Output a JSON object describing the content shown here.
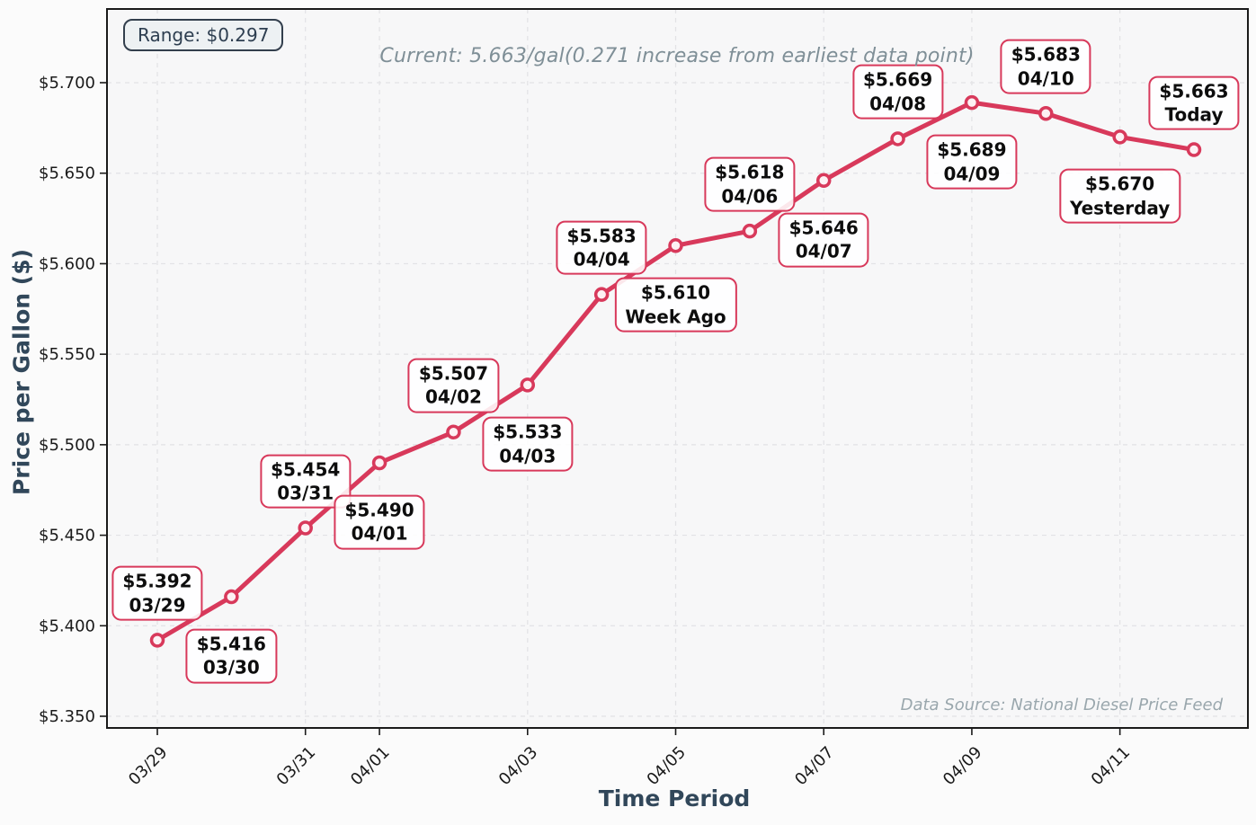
{
  "chart_data": {
    "type": "line",
    "title": "Current: 5.663/gal(0.271 increase from earliest data point)",
    "xlabel": "Time Period",
    "ylabel": "Price per Gallon ($)",
    "range_badge": "Range: $0.297",
    "data_source": "Data Source: National Diesel Price Feed",
    "x": [
      "03/29",
      "03/30",
      "03/31",
      "04/01",
      "04/02",
      "04/03",
      "04/04",
      "Week Ago",
      "04/06",
      "04/07",
      "04/08",
      "04/09",
      "04/10",
      "Yesterday",
      "Today"
    ],
    "values": [
      5.392,
      5.416,
      5.454,
      5.49,
      5.507,
      5.533,
      5.583,
      5.61,
      5.618,
      5.646,
      5.669,
      5.689,
      5.683,
      5.67,
      5.663
    ],
    "point_labels": [
      [
        "$5.392",
        "03/29"
      ],
      [
        "$5.416",
        "03/30"
      ],
      [
        "$5.454",
        "03/31"
      ],
      [
        "$5.490",
        "04/01"
      ],
      [
        "$5.507",
        "04/02"
      ],
      [
        "$5.533",
        "04/03"
      ],
      [
        "$5.583",
        "04/04"
      ],
      [
        "$5.610",
        "Week Ago"
      ],
      [
        "$5.618",
        "04/06"
      ],
      [
        "$5.646",
        "04/07"
      ],
      [
        "$5.669",
        "04/08"
      ],
      [
        "$5.689",
        "04/09"
      ],
      [
        "$5.683",
        "04/10"
      ],
      [
        "$5.670",
        "Yesterday"
      ],
      [
        "$5.663",
        "Today"
      ]
    ],
    "y_ticks": [
      {
        "value": 5.35,
        "label": "$5.350"
      },
      {
        "value": 5.4,
        "label": "$5.400"
      },
      {
        "value": 5.45,
        "label": "$5.450"
      },
      {
        "value": 5.5,
        "label": "$5.500"
      },
      {
        "value": 5.55,
        "label": "$5.550"
      },
      {
        "value": 5.6,
        "label": "$5.600"
      },
      {
        "value": 5.65,
        "label": "$5.650"
      },
      {
        "value": 5.7,
        "label": "$5.700"
      }
    ],
    "x_ticks": [
      {
        "index": 0,
        "label": "03/29"
      },
      {
        "index": 2,
        "label": "03/31"
      },
      {
        "index": 3,
        "label": "04/01"
      },
      {
        "index": 5,
        "label": "04/03"
      },
      {
        "index": 7,
        "label": "04/05"
      },
      {
        "index": 9,
        "label": "04/07"
      },
      {
        "index": 11,
        "label": "04/09"
      },
      {
        "index": 13,
        "label": "04/11"
      }
    ],
    "ylim": [
      5.344,
      5.741
    ],
    "grid": "dashed",
    "legend": "none",
    "colors": {
      "line": "#d8395b",
      "marker_fill": "#fdf1f4",
      "annotation_border": "#d8395b",
      "axis_label": "#31475a",
      "title": "#7f8f97",
      "data_source": "#9aa7ad",
      "tick_label": "#1a1a1a",
      "grid": "#e2e2e5",
      "spine": "#1a1a1a",
      "plot_bg": "#f7f7f8",
      "figure_bg": "#fbfbfb",
      "range_badge_bg": "#edf1f3",
      "range_badge_border": "#333f4d"
    }
  }
}
